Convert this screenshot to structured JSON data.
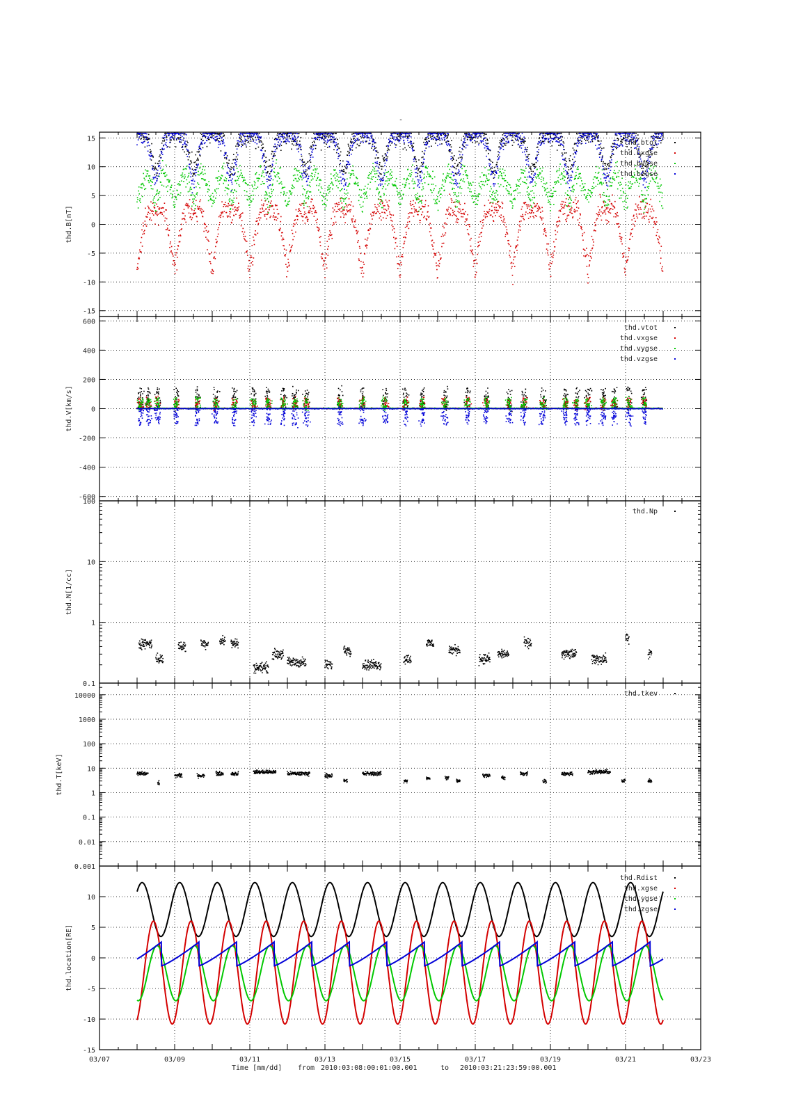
{
  "page": {
    "title": "-",
    "footer": {
      "xlabel": "Time [mm/dd]",
      "from_label": "from",
      "from": "2010:03:08:00:01:00.001",
      "to_label": "to",
      "to": "2010:03:21:23:59:00.001"
    }
  },
  "colors": {
    "black": "#000000",
    "red": "#d40000",
    "green": "#00c800",
    "blue": "#0000d8"
  },
  "chart_data": [
    {
      "type": "scatter",
      "id": "B",
      "ylabel": "thd.B[nT]",
      "ylim": [
        -16,
        16
      ],
      "yticks": [
        -15,
        -10,
        -5,
        0,
        5,
        10,
        15
      ],
      "ytick_labels": [
        "-15",
        "-10",
        "-5",
        "0",
        "5",
        "10",
        "15"
      ],
      "scale": "linear",
      "xlim": [
        7,
        23
      ],
      "xticks": [
        7,
        9,
        11,
        13,
        15,
        17,
        19,
        21,
        23
      ],
      "xtick_labels": [
        "03/07",
        "03/09",
        "03/11",
        "03/13",
        "03/15",
        "03/17",
        "03/19",
        "03/21",
        "03/23"
      ],
      "grid": true,
      "legend_position": "top-right",
      "series": [
        {
          "name": "thd.btot",
          "color": "black",
          "pattern": "magnetosphere_b",
          "comp": "tot"
        },
        {
          "name": "thd.bxgse",
          "color": "red",
          "pattern": "magnetosphere_b",
          "comp": "x"
        },
        {
          "name": "thd.bygse",
          "color": "green",
          "pattern": "magnetosphere_b",
          "comp": "y"
        },
        {
          "name": "thd.bzgse",
          "color": "blue",
          "pattern": "magnetosphere_b",
          "comp": "z"
        }
      ],
      "time_range": [
        8.0,
        22.0
      ]
    },
    {
      "type": "scatter",
      "id": "V",
      "ylabel": "thd.V[km/s]",
      "ylim": [
        -630,
        630
      ],
      "yticks": [
        -600,
        -400,
        -200,
        0,
        200,
        400,
        600
      ],
      "ytick_labels": [
        "-600",
        "-400",
        "-200",
        "0",
        "200",
        "400",
        "600"
      ],
      "scale": "linear",
      "xlim": [
        7,
        23
      ],
      "grid": true,
      "legend_position": "top-right",
      "series": [
        {
          "name": "thd.vtot",
          "color": "black",
          "comp": "tot"
        },
        {
          "name": "thd.vxgse",
          "color": "red",
          "comp": "x"
        },
        {
          "name": "thd.vygse",
          "color": "green",
          "comp": "y"
        },
        {
          "name": "thd.vzgse",
          "color": "blue",
          "comp": "z"
        }
      ],
      "bursts": [
        8.1,
        8.3,
        8.55,
        9.05,
        9.6,
        10.1,
        10.6,
        11.1,
        11.5,
        11.9,
        12.2,
        12.5,
        13.4,
        14.0,
        14.6,
        15.15,
        15.6,
        16.2,
        16.8,
        17.3,
        17.9,
        18.3,
        18.8,
        19.4,
        19.7,
        20.0,
        20.4,
        20.7,
        21.1,
        21.5
      ],
      "time_range": [
        8.0,
        22.0
      ]
    },
    {
      "type": "scatter",
      "id": "N",
      "ylabel": "thd.N[1/cc]",
      "ylim": [
        0.1,
        100
      ],
      "yticks": [
        0.1,
        1,
        10,
        100
      ],
      "ytick_labels": [
        "0.1",
        "1",
        "10",
        "100"
      ],
      "scale": "log",
      "xlim": [
        7,
        23
      ],
      "grid": true,
      "legend_position": "top-right",
      "series": [
        {
          "name": "thd.Np",
          "color": "black"
        }
      ],
      "segments": [
        [
          8.05,
          8.4,
          0.45
        ],
        [
          8.5,
          8.7,
          0.25
        ],
        [
          9.1,
          9.3,
          0.4
        ],
        [
          9.7,
          9.9,
          0.45
        ],
        [
          10.2,
          10.35,
          0.5
        ],
        [
          10.5,
          10.7,
          0.45
        ],
        [
          11.1,
          11.5,
          0.18
        ],
        [
          11.6,
          11.9,
          0.3
        ],
        [
          12.0,
          12.5,
          0.22
        ],
        [
          13.0,
          13.2,
          0.2
        ],
        [
          13.5,
          13.7,
          0.35
        ],
        [
          14.0,
          14.5,
          0.2
        ],
        [
          15.1,
          15.3,
          0.25
        ],
        [
          15.7,
          15.9,
          0.45
        ],
        [
          16.3,
          16.6,
          0.35
        ],
        [
          17.1,
          17.4,
          0.25
        ],
        [
          17.6,
          17.9,
          0.3
        ],
        [
          18.3,
          18.5,
          0.45
        ],
        [
          19.3,
          19.7,
          0.3
        ],
        [
          20.1,
          20.5,
          0.25
        ],
        [
          21.0,
          21.1,
          0.55
        ],
        [
          21.6,
          21.7,
          0.3
        ]
      ],
      "time_range": [
        8.0,
        22.0
      ]
    },
    {
      "type": "scatter",
      "id": "T",
      "ylabel": "thd.T[keV]",
      "ylim": [
        0.001,
        30000
      ],
      "yticks": [
        0.001,
        0.01,
        0.1,
        1,
        10,
        100,
        1000,
        10000
      ],
      "ytick_labels": [
        "0.001",
        "0.01",
        "0.1",
        "1",
        "10",
        "100",
        "1000",
        "10000"
      ],
      "scale": "log",
      "xlim": [
        7,
        23
      ],
      "grid": true,
      "legend_position": "top-right",
      "series": [
        {
          "name": "thd.tkev",
          "color": "black"
        }
      ],
      "segments": [
        [
          8.0,
          8.3,
          6
        ],
        [
          8.55,
          8.6,
          2.5
        ],
        [
          9.0,
          9.2,
          5
        ],
        [
          9.6,
          9.8,
          5
        ],
        [
          10.1,
          10.3,
          6
        ],
        [
          10.5,
          10.7,
          6
        ],
        [
          11.1,
          11.7,
          7
        ],
        [
          12.0,
          12.6,
          6
        ],
        [
          13.0,
          13.2,
          5
        ],
        [
          13.5,
          13.6,
          3
        ],
        [
          14.0,
          14.5,
          6
        ],
        [
          15.1,
          15.2,
          3
        ],
        [
          15.7,
          15.8,
          4
        ],
        [
          16.2,
          16.3,
          4
        ],
        [
          16.5,
          16.6,
          3
        ],
        [
          17.2,
          17.4,
          5
        ],
        [
          17.7,
          17.8,
          4
        ],
        [
          18.2,
          18.4,
          6
        ],
        [
          18.8,
          18.9,
          3
        ],
        [
          19.3,
          19.6,
          6
        ],
        [
          20.0,
          20.6,
          7
        ],
        [
          20.9,
          21.0,
          3
        ],
        [
          21.6,
          21.7,
          3
        ]
      ],
      "time_range": [
        8.0,
        22.0
      ]
    },
    {
      "type": "line",
      "id": "loc",
      "ylabel": "thd.location[RE]",
      "ylim": [
        -15,
        15
      ],
      "yticks": [
        -15,
        -10,
        -5,
        0,
        5,
        10
      ],
      "ytick_labels": [
        "-15",
        "-10",
        "-5",
        "0",
        "5",
        "10"
      ],
      "scale": "linear",
      "xlim": [
        7,
        23
      ],
      "xticks": [
        7,
        9,
        11,
        13,
        15,
        17,
        19,
        21,
        23
      ],
      "xtick_labels": [
        "03/07",
        "03/09",
        "03/11",
        "03/13",
        "03/15",
        "03/17",
        "03/19",
        "03/21",
        "03/23"
      ],
      "grid": true,
      "legend_position": "top-right",
      "orbit_period_days": 1.0,
      "series": [
        {
          "name": "thd.Rdist",
          "color": "black",
          "comp": "r",
          "max": 11.8
        },
        {
          "name": "thd.xgse",
          "color": "red",
          "comp": "x",
          "min": -10.8
        },
        {
          "name": "thd.ygse",
          "color": "green",
          "comp": "y",
          "min": -7.0
        },
        {
          "name": "thd.zgse",
          "color": "blue",
          "comp": "z",
          "max": 2.6
        }
      ],
      "time_range": [
        8.0,
        22.0
      ]
    }
  ]
}
